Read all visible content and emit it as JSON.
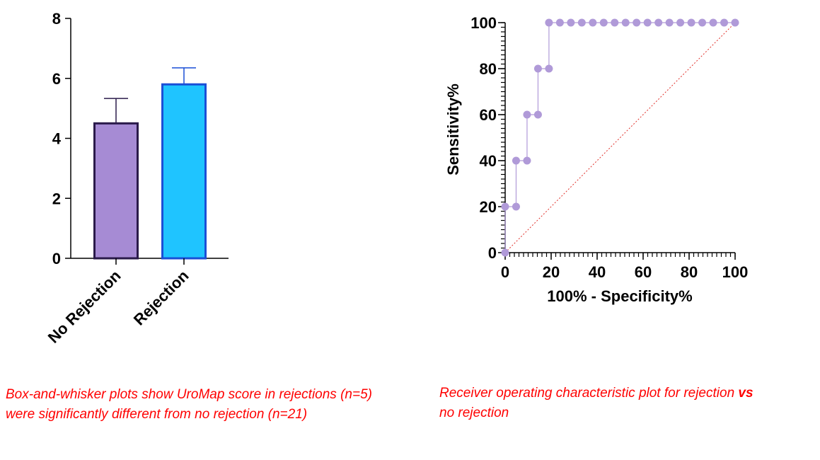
{
  "colors": {
    "no_rejection_fill": "#a68bd4",
    "no_rejection_edge": "#2a1a4a",
    "rejection_fill": "#1fc4ff",
    "rejection_edge": "#1a4fd6",
    "roc_points": "#b09ad8",
    "reference_line": "#e0302a",
    "caption": "#ff0000"
  },
  "chart_data": [
    {
      "type": "bar",
      "categories": [
        "No Rejection",
        "Rejection"
      ],
      "values": [
        4.5,
        5.8
      ],
      "error_upper": [
        5.33,
        6.35
      ],
      "ylim": [
        0,
        8
      ],
      "yticks": [
        "0",
        "2",
        "4",
        "6",
        "8"
      ],
      "xlabel": "",
      "ylabel": "",
      "caption": "Box-and-whisker plots show UroMap score in rejections (n=5) were significantly different from no rejection (n=21)"
    },
    {
      "type": "line",
      "series": [
        {
          "x": [
            0,
            0,
            4.76,
            4.76,
            9.52,
            9.52,
            14.29,
            14.29,
            19.05,
            19.05,
            23.81,
            28.57,
            33.33,
            38.1,
            42.86,
            47.62,
            52.38,
            57.14,
            61.9,
            66.67,
            71.43,
            76.19,
            80.95,
            85.71,
            90.48,
            95.24,
            100
          ],
          "y": [
            0,
            20,
            20,
            40,
            40,
            60,
            60,
            80,
            80,
            100,
            100,
            100,
            100,
            100,
            100,
            100,
            100,
            100,
            100,
            100,
            100,
            100,
            100,
            100,
            100,
            100,
            100
          ]
        }
      ],
      "reference_line": [
        [
          0,
          0
        ],
        [
          100,
          100
        ]
      ],
      "xlim": [
        0,
        100
      ],
      "ylim": [
        0,
        100
      ],
      "xticks": [
        "0",
        "20",
        "40",
        "60",
        "80",
        "100"
      ],
      "yticks": [
        "0",
        "20",
        "40",
        "60",
        "80",
        "100"
      ],
      "xlabel": "100% - Specificity%",
      "ylabel": "Sensitivity%",
      "caption_main": "Receiver operating characteristic plot for rejection",
      "caption_bold": "vs",
      "caption_end": "no rejection"
    }
  ]
}
